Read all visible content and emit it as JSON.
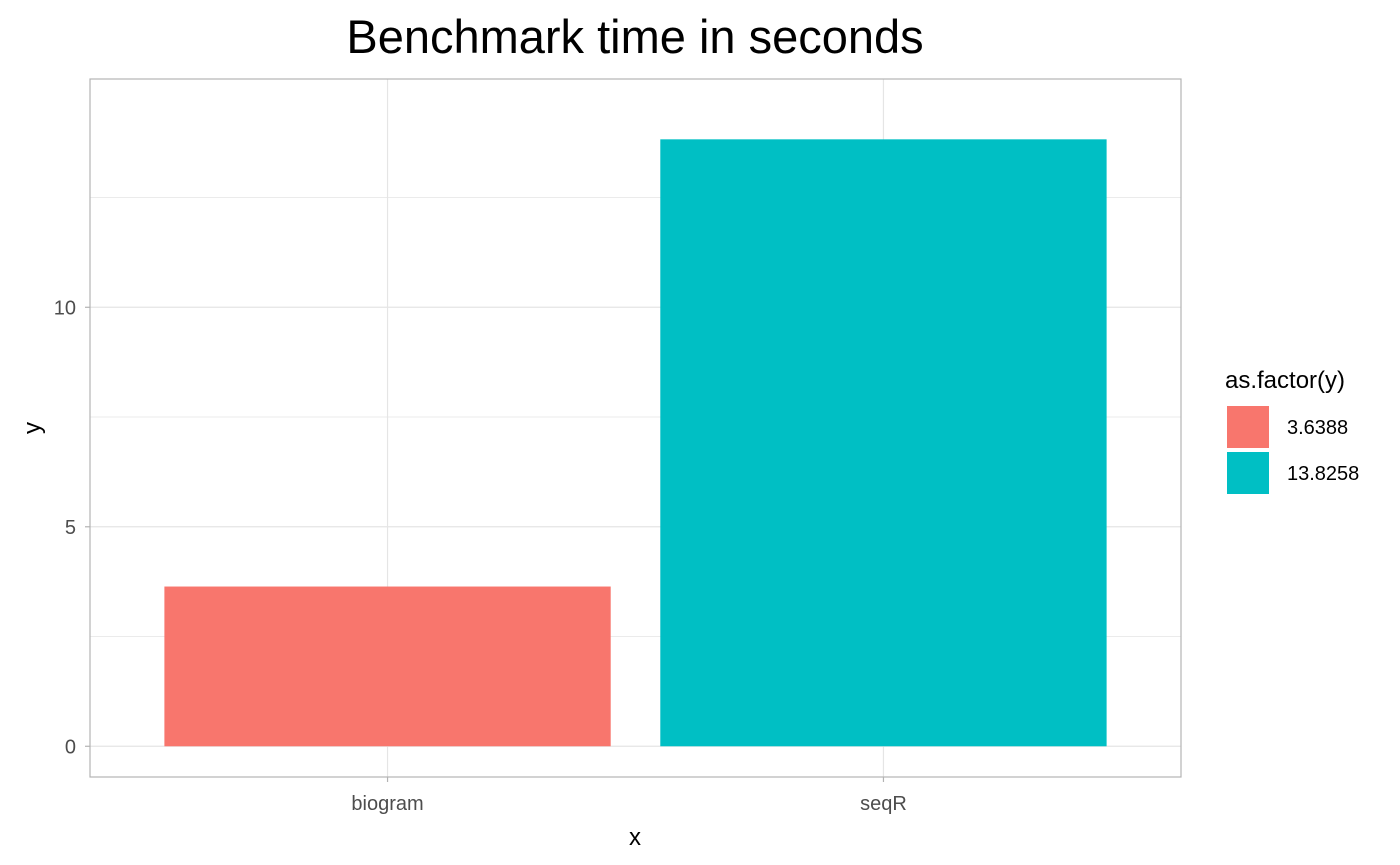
{
  "chart_data": {
    "type": "bar",
    "title": "Benchmark time in seconds",
    "xlabel": "x",
    "ylabel": "y",
    "categories": [
      "biogram",
      "seqR"
    ],
    "values": [
      3.6388,
      13.8258
    ],
    "ylim": [
      -0.7,
      15.2
    ],
    "yticks": [
      0,
      5,
      10
    ],
    "ytick_labels": [
      "0",
      "5",
      "10"
    ],
    "grid": true,
    "colors": [
      "#F8766D",
      "#00BFC4"
    ],
    "legend": {
      "title": "as.factor(y)",
      "position": "right",
      "entries": [
        {
          "label": "3.6388",
          "color": "#F8766D"
        },
        {
          "label": "13.8258",
          "color": "#00BFC4"
        }
      ]
    }
  },
  "theme": {
    "grid_color": "#e5e5e5",
    "border_color": "#b3b3b3",
    "tick_color": "#b3b3b3"
  }
}
